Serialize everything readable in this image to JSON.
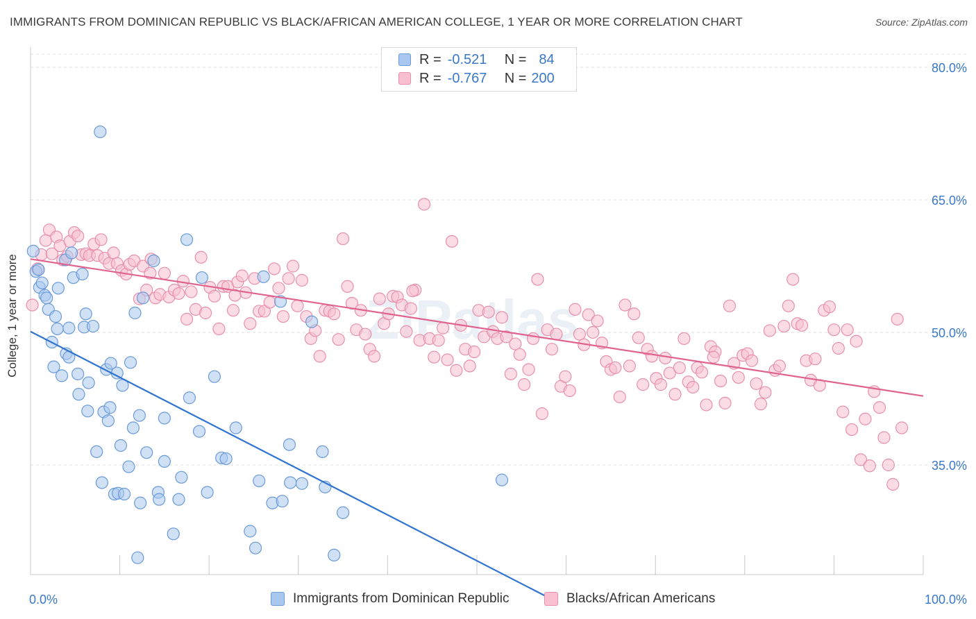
{
  "header": {
    "title": "IMMIGRANTS FROM DOMINICAN REPUBLIC VS BLACK/AFRICAN AMERICAN COLLEGE, 1 YEAR OR MORE CORRELATION CHART",
    "source": "Source: ZipAtlas.com"
  },
  "legend_top": {
    "row1": {
      "r_label": "R =",
      "r_value": "-0.521",
      "n_label": "N =",
      "n_value": "84"
    },
    "row2": {
      "r_label": "R =",
      "r_value": "-0.767",
      "n_label": "N =",
      "n_value": "200"
    }
  },
  "legend_bottom": {
    "series1": "Immigrants from Dominican Republic",
    "series2": "Blacks/African Americans"
  },
  "colors": {
    "blue_fill": "#a9c8ef",
    "blue_stroke": "#6a9ad8",
    "blue_line": "#2f74d0",
    "pink_fill": "#f7bfd0",
    "pink_stroke": "#e890ab",
    "pink_line": "#e0628f",
    "tick_label": "#3a78c9",
    "grid": "#dcdcdc"
  },
  "chart_data": {
    "type": "scatter",
    "xlabel": "",
    "ylabel": "College, 1 year or more",
    "xlim": [
      0,
      100
    ],
    "ylim": [
      20,
      82
    ],
    "x_tick_labels": [
      {
        "value": 0,
        "label": "0.0%"
      },
      {
        "value": 100,
        "label": "100.0%"
      }
    ],
    "y_tick_labels": [
      {
        "value": 80,
        "label": "80.0%"
      },
      {
        "value": 65,
        "label": "65.0%"
      },
      {
        "value": 50,
        "label": "50.0%"
      },
      {
        "value": 35,
        "label": "35.0%"
      }
    ],
    "grid": true,
    "series": [
      {
        "name": "Immigrants from Dominican Republic",
        "color": "blue",
        "trend": {
          "x": [
            0,
            58
          ],
          "y": [
            50.1,
            20
          ]
        },
        "points": [
          [
            0.3,
            59.2
          ],
          [
            0.6,
            56.9
          ],
          [
            1.0,
            55.1
          ],
          [
            1.3,
            55.6
          ],
          [
            1.6,
            54.2
          ],
          [
            1.8,
            53.9
          ],
          [
            2.0,
            52.6
          ],
          [
            2.4,
            48.9
          ],
          [
            2.6,
            46.1
          ],
          [
            2.8,
            51.8
          ],
          [
            3.0,
            50.4
          ],
          [
            3.5,
            45.1
          ],
          [
            3.9,
            58.2
          ],
          [
            4.0,
            47.6
          ],
          [
            4.3,
            47.2
          ],
          [
            4.3,
            50.5
          ],
          [
            4.6,
            59.0
          ],
          [
            4.8,
            56.2
          ],
          [
            5.3,
            45.3
          ],
          [
            5.4,
            43.0
          ],
          [
            5.8,
            56.6
          ],
          [
            6.0,
            50.6
          ],
          [
            6.2,
            52.1
          ],
          [
            6.4,
            41.1
          ],
          [
            6.5,
            44.3
          ],
          [
            7.0,
            50.7
          ],
          [
            7.4,
            36.5
          ],
          [
            7.8,
            72.7
          ],
          [
            8.0,
            33.0
          ],
          [
            8.2,
            41.0
          ],
          [
            8.5,
            45.8
          ],
          [
            8.7,
            40.0
          ],
          [
            8.9,
            41.5
          ],
          [
            9.0,
            46.5
          ],
          [
            9.4,
            31.7
          ],
          [
            9.7,
            45.4
          ],
          [
            9.8,
            31.8
          ],
          [
            10.1,
            37.2
          ],
          [
            10.3,
            44.0
          ],
          [
            10.5,
            31.7
          ],
          [
            11.0,
            34.8
          ],
          [
            11.2,
            46.6
          ],
          [
            11.5,
            39.2
          ],
          [
            11.7,
            52.2
          ],
          [
            12.0,
            24.5
          ],
          [
            12.2,
            40.6
          ],
          [
            12.3,
            30.7
          ],
          [
            12.6,
            53.9
          ],
          [
            13.0,
            36.4
          ],
          [
            13.8,
            58.1
          ],
          [
            14.3,
            31.9
          ],
          [
            14.4,
            31.1
          ],
          [
            15.0,
            35.4
          ],
          [
            15.0,
            40.3
          ],
          [
            16.0,
            27.2
          ],
          [
            16.6,
            31.1
          ],
          [
            16.9,
            33.6
          ],
          [
            17.5,
            60.5
          ],
          [
            17.8,
            42.6
          ],
          [
            18.9,
            38.8
          ],
          [
            19.2,
            56.2
          ],
          [
            19.8,
            31.9
          ],
          [
            20.6,
            45.0
          ],
          [
            21.4,
            35.8
          ],
          [
            21.9,
            35.7
          ],
          [
            23.0,
            39.2
          ],
          [
            24.6,
            27.5
          ],
          [
            25.2,
            25.6
          ],
          [
            25.6,
            33.2
          ],
          [
            26.1,
            56.3
          ],
          [
            27.1,
            30.7
          ],
          [
            28.0,
            53.5
          ],
          [
            28.2,
            30.9
          ],
          [
            29.0,
            37.3
          ],
          [
            29.1,
            33.0
          ],
          [
            30.4,
            32.9
          ],
          [
            31.5,
            51.2
          ],
          [
            32.7,
            36.5
          ],
          [
            33.0,
            32.5
          ],
          [
            34.0,
            24.8
          ],
          [
            35.0,
            29.6
          ],
          [
            52.8,
            33.3
          ],
          [
            0.9,
            57.1
          ],
          [
            3.1,
            55.0
          ]
        ]
      },
      {
        "name": "Blacks/African Americans",
        "color": "pink",
        "trend": {
          "x": [
            0,
            100
          ],
          "y": [
            58.3,
            42.8
          ]
        },
        "points": [
          [
            0.2,
            53.1
          ],
          [
            0.8,
            57.2
          ],
          [
            1.2,
            58.8
          ],
          [
            1.7,
            60.4
          ],
          [
            2.1,
            61.6
          ],
          [
            2.4,
            58.9
          ],
          [
            2.9,
            60.8
          ],
          [
            3.3,
            59.8
          ],
          [
            3.6,
            58.2
          ],
          [
            4.1,
            58.6
          ],
          [
            4.4,
            60.3
          ],
          [
            4.9,
            61.3
          ],
          [
            5.3,
            60.9
          ],
          [
            5.7,
            58.8
          ],
          [
            6.2,
            58.9
          ],
          [
            6.6,
            58.7
          ],
          [
            7.1,
            60.0
          ],
          [
            7.5,
            58.7
          ],
          [
            7.9,
            60.5
          ],
          [
            8.3,
            58.4
          ],
          [
            8.8,
            57.8
          ],
          [
            9.3,
            59.0
          ],
          [
            9.7,
            57.8
          ],
          [
            10.2,
            57.0
          ],
          [
            10.7,
            56.6
          ],
          [
            11.1,
            57.7
          ],
          [
            11.6,
            58.1
          ],
          [
            12.2,
            53.8
          ],
          [
            12.6,
            57.5
          ],
          [
            13.0,
            54.8
          ],
          [
            13.5,
            58.3
          ],
          [
            14.0,
            53.9
          ],
          [
            14.5,
            54.3
          ],
          [
            15.0,
            56.7
          ],
          [
            15.5,
            54.0
          ],
          [
            16.1,
            54.8
          ],
          [
            16.6,
            54.4
          ],
          [
            17.1,
            55.8
          ],
          [
            17.5,
            51.5
          ],
          [
            18.0,
            54.6
          ],
          [
            18.5,
            52.6
          ],
          [
            19.1,
            58.5
          ],
          [
            19.6,
            52.2
          ],
          [
            20.1,
            55.1
          ],
          [
            20.6,
            54.1
          ],
          [
            21.1,
            50.4
          ],
          [
            21.6,
            55.2
          ],
          [
            22.1,
            55.2
          ],
          [
            22.7,
            52.5
          ],
          [
            23.2,
            55.7
          ],
          [
            23.7,
            56.4
          ],
          [
            24.1,
            54.5
          ],
          [
            24.6,
            51.0
          ],
          [
            25.1,
            56.1
          ],
          [
            25.6,
            52.4
          ],
          [
            26.2,
            52.4
          ],
          [
            26.8,
            53.4
          ],
          [
            27.3,
            57.2
          ],
          [
            27.8,
            55.0
          ],
          [
            28.3,
            51.8
          ],
          [
            28.9,
            56.1
          ],
          [
            29.4,
            57.5
          ],
          [
            29.9,
            53.0
          ],
          [
            30.4,
            55.9
          ],
          [
            30.9,
            51.8
          ],
          [
            31.4,
            49.3
          ],
          [
            31.9,
            50.2
          ],
          [
            32.4,
            47.3
          ],
          [
            33.0,
            52.5
          ],
          [
            33.5,
            52.4
          ],
          [
            34.0,
            52.1
          ],
          [
            34.5,
            49.2
          ],
          [
            35.0,
            60.6
          ],
          [
            35.5,
            55.2
          ],
          [
            36.0,
            53.3
          ],
          [
            36.5,
            50.3
          ],
          [
            37.0,
            52.5
          ],
          [
            37.5,
            49.8
          ],
          [
            38.0,
            48.1
          ],
          [
            38.5,
            47.3
          ],
          [
            39.1,
            53.8
          ],
          [
            39.6,
            51.0
          ],
          [
            40.1,
            52.1
          ],
          [
            40.6,
            54.1
          ],
          [
            41.1,
            54.0
          ],
          [
            41.6,
            53.1
          ],
          [
            42.1,
            50.1
          ],
          [
            42.6,
            52.7
          ],
          [
            43.1,
            54.8
          ],
          [
            43.6,
            49.1
          ],
          [
            44.1,
            64.5
          ],
          [
            44.7,
            49.3
          ],
          [
            45.2,
            47.2
          ],
          [
            45.7,
            49.1
          ],
          [
            46.2,
            50.5
          ],
          [
            46.7,
            46.9
          ],
          [
            47.2,
            60.3
          ],
          [
            47.7,
            45.7
          ],
          [
            48.2,
            50.8
          ],
          [
            48.7,
            48.1
          ],
          [
            49.2,
            46.2
          ],
          [
            49.7,
            47.8
          ],
          [
            50.2,
            52.5
          ],
          [
            50.8,
            49.5
          ],
          [
            51.3,
            52.3
          ],
          [
            51.8,
            50.1
          ],
          [
            52.3,
            49.3
          ],
          [
            52.8,
            51.7
          ],
          [
            53.3,
            49.5
          ],
          [
            53.8,
            45.3
          ],
          [
            54.3,
            48.7
          ],
          [
            54.8,
            47.5
          ],
          [
            55.3,
            44.1
          ],
          [
            55.8,
            45.8
          ],
          [
            56.3,
            49.3
          ],
          [
            56.8,
            56.0
          ],
          [
            57.3,
            40.8
          ],
          [
            57.9,
            50.3
          ],
          [
            58.4,
            48.1
          ],
          [
            58.9,
            49.8
          ],
          [
            59.4,
            43.9
          ],
          [
            59.9,
            45.0
          ],
          [
            60.4,
            43.4
          ],
          [
            61.0,
            52.6
          ],
          [
            61.5,
            49.8
          ],
          [
            62.0,
            48.6
          ],
          [
            62.5,
            52.0
          ],
          [
            63.0,
            50.0
          ],
          [
            63.5,
            51.3
          ],
          [
            64.0,
            48.8
          ],
          [
            64.5,
            46.7
          ],
          [
            65.0,
            45.8
          ],
          [
            65.5,
            46.0
          ],
          [
            66.0,
            42.7
          ],
          [
            66.6,
            53.1
          ],
          [
            67.1,
            46.2
          ],
          [
            67.6,
            52.1
          ],
          [
            68.1,
            49.4
          ],
          [
            68.6,
            44.1
          ],
          [
            69.1,
            48.1
          ],
          [
            69.6,
            47.3
          ],
          [
            70.1,
            44.8
          ],
          [
            70.6,
            44.1
          ],
          [
            71.1,
            47.1
          ],
          [
            71.6,
            45.4
          ],
          [
            72.2,
            43.0
          ],
          [
            72.7,
            46.0
          ],
          [
            73.2,
            49.3
          ],
          [
            73.7,
            44.4
          ],
          [
            74.2,
            43.8
          ],
          [
            74.7,
            46.0
          ],
          [
            75.2,
            45.5
          ],
          [
            75.7,
            41.8
          ],
          [
            76.2,
            48.4
          ],
          [
            76.7,
            47.8
          ],
          [
            77.3,
            44.5
          ],
          [
            77.8,
            42.0
          ],
          [
            78.3,
            53.0
          ],
          [
            78.8,
            46.5
          ],
          [
            79.3,
            44.9
          ],
          [
            79.8,
            47.4
          ],
          [
            80.3,
            47.6
          ],
          [
            80.8,
            46.8
          ],
          [
            81.3,
            44.2
          ],
          [
            81.8,
            41.9
          ],
          [
            82.3,
            43.2
          ],
          [
            82.8,
            50.2
          ],
          [
            83.4,
            45.7
          ],
          [
            83.9,
            46.2
          ],
          [
            84.4,
            50.7
          ],
          [
            84.9,
            53.0
          ],
          [
            85.4,
            56.0
          ],
          [
            85.9,
            51.0
          ],
          [
            86.4,
            50.8
          ],
          [
            86.9,
            46.8
          ],
          [
            87.4,
            44.6
          ],
          [
            87.9,
            47.0
          ],
          [
            88.4,
            44.0
          ],
          [
            88.9,
            52.5
          ],
          [
            89.5,
            52.9
          ],
          [
            90.0,
            50.3
          ],
          [
            90.5,
            48.2
          ],
          [
            91.0,
            41.0
          ],
          [
            91.5,
            50.3
          ],
          [
            92.0,
            39.0
          ],
          [
            92.5,
            49.0
          ],
          [
            93.0,
            35.6
          ],
          [
            93.5,
            40.2
          ],
          [
            94.0,
            34.9
          ],
          [
            94.5,
            43.3
          ],
          [
            95.1,
            41.5
          ],
          [
            95.6,
            38.1
          ],
          [
            96.1,
            35.0
          ],
          [
            96.6,
            32.8
          ],
          [
            97.1,
            51.5
          ],
          [
            97.6,
            39.2
          ],
          [
            13.4,
            56.7
          ],
          [
            22.9,
            54.2
          ],
          [
            42.8,
            54.7
          ],
          [
            76.5,
            47.2
          ]
        ]
      }
    ]
  }
}
